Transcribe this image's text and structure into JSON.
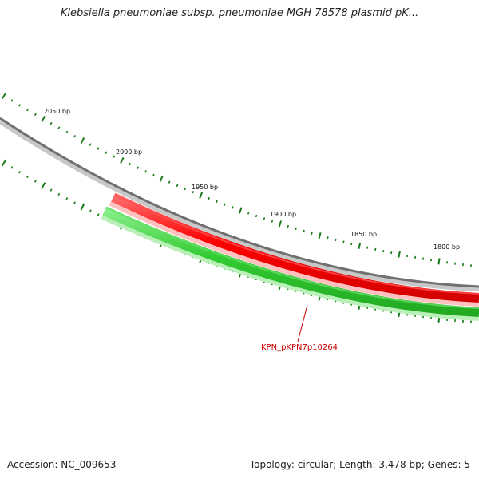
{
  "title": "Klebsiella pneumoniae subsp. pneumoniae MGH 78578 plasmid pK...",
  "footer": {
    "accession": "Accession: NC_009653",
    "topology": "Topology: circular; Length: 3,478 bp; Genes: 5"
  },
  "ruler": {
    "labels": [
      "2050 bp",
      "2000 bp",
      "1950 bp",
      "1900 bp",
      "1850 bp",
      "1800 bp"
    ],
    "tick_color": "#1a7a1a"
  },
  "backbone": {
    "color": "#808080"
  },
  "genes": [
    {
      "name": "KPN_pKPN7p10264",
      "strand": "forward",
      "color": "#ff0000"
    },
    {
      "name": "",
      "strand": "reverse",
      "color": "#33cc33"
    }
  ],
  "gene_label": {
    "text": "KPN_pKPN7p10264",
    "color": "#cc0000"
  }
}
